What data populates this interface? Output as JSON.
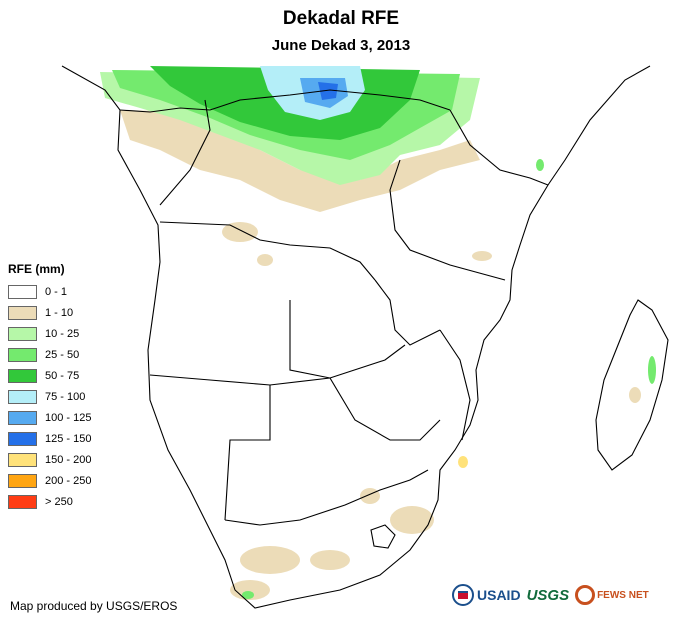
{
  "title": "Dekadal RFE",
  "subtitle": "June Dekad 3, 2013",
  "legend": {
    "title": "RFE (mm)",
    "items": [
      {
        "label": "0 - 1",
        "color": "#ffffff"
      },
      {
        "label": "1 - 10",
        "color": "#ecdcb8"
      },
      {
        "label": "10 - 25",
        "color": "#b6f7a8"
      },
      {
        "label": "25 - 50",
        "color": "#74ea6e"
      },
      {
        "label": "50 - 75",
        "color": "#32c83a"
      },
      {
        "label": "75 - 100",
        "color": "#b4eef8"
      },
      {
        "label": "100 - 125",
        "color": "#56aaf0"
      },
      {
        "label": "125 - 150",
        "color": "#2470e8"
      },
      {
        "label": "150 - 200",
        "color": "#ffe27a"
      },
      {
        "label": "200 - 250",
        "color": "#ffa512"
      },
      {
        "label": "> 250",
        "color": "#ff3c14"
      }
    ]
  },
  "credit": "Map produced by USGS/EROS",
  "logos": {
    "usaid": "USAID",
    "usgs": "USGS",
    "fews": "FEWS NET"
  }
}
